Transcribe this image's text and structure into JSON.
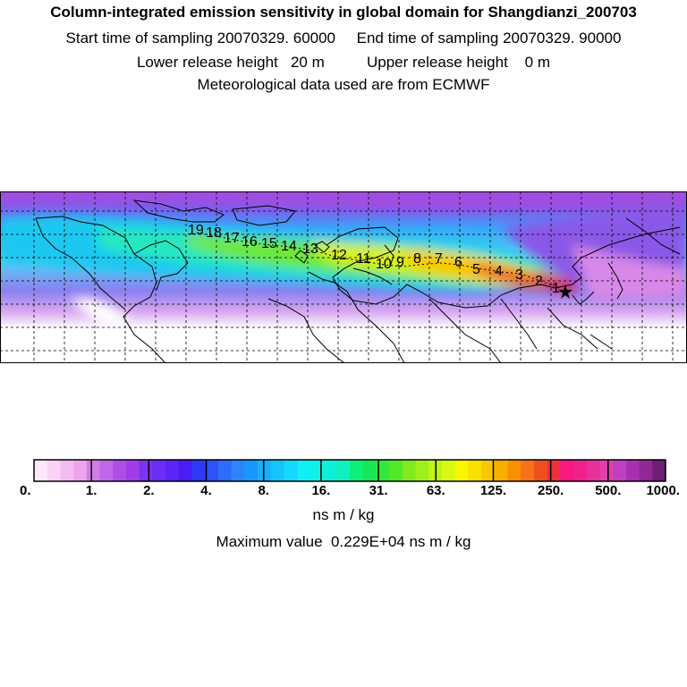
{
  "header": {
    "title": "Column-integrated emission sensitivity in global domain for Shangdianzi_200703",
    "sampling_line": "Start time of sampling 20070329. 60000     End time of sampling 20070329. 90000",
    "release_line": "Lower release height   20 m          Upper release height    0 m",
    "met_line": "Meteorological data used are from ECMWF"
  },
  "map": {
    "trajectory_labels": [
      "1",
      "2",
      "3",
      "4",
      "5",
      "6",
      "7",
      "8",
      "9",
      "10",
      "11",
      "12",
      "13",
      "14",
      "15",
      "16",
      "17",
      "18",
      "19"
    ],
    "receptor_marker": "star",
    "color_scale_note": "white=low, purple/blue/cyan/green/yellow/red=high"
  },
  "colorbar": {
    "tick_labels": [
      "0.",
      "1.",
      "2.",
      "4.",
      "8.",
      "16.",
      "31.",
      "63.",
      "125.",
      "250.",
      "500.",
      "1000."
    ],
    "unit": "ns m / kg",
    "max_value_line": "Maximum value  0.229E+04 ns m / kg",
    "colors": [
      "#fde8fb",
      "#f9d2f6",
      "#f4bdf1",
      "#efa5ec",
      "#d27de8",
      "#c066e8",
      "#ae4ee8",
      "#a13ce9",
      "#7a33f1",
      "#6a2ef4",
      "#5a25f6",
      "#4a1cf7",
      "#2e38f6",
      "#2f52f8",
      "#2d6bf9",
      "#2d85fa",
      "#1998fb",
      "#17aefb",
      "#16c4fc",
      "#15d8fd",
      "#12eef7",
      "#10f0e6",
      "#0ef0d4",
      "#10f0bf",
      "#0cf07a",
      "#18e858",
      "#34e83a",
      "#52e82a",
      "#80ea1e",
      "#9ef01a",
      "#bdf518",
      "#d8f816",
      "#f8f600",
      "#f8e000",
      "#f8c800",
      "#f8b000",
      "#f89000",
      "#f87018",
      "#f05020",
      "#f03038",
      "#f81880",
      "#f0208c",
      "#e8309a",
      "#e040a8",
      "#c040c0",
      "#a830b0",
      "#902898",
      "#701c78"
    ]
  }
}
